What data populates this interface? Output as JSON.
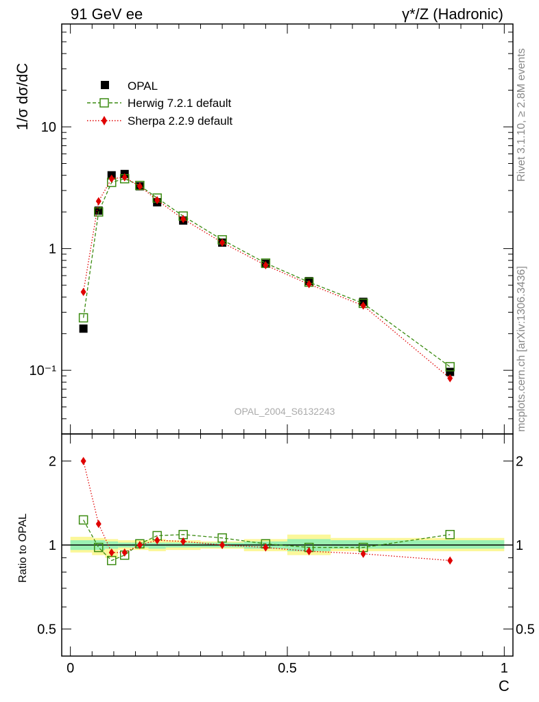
{
  "header": {
    "left": "91 GeV ee",
    "right": "γ*/Z (Hadronic)"
  },
  "side": {
    "rivet": "Rivet 3.1.10, ≥ 2.8M events",
    "source": "mcplots.cern.ch [arXiv:1306.3436]"
  },
  "watermark": "OPAL_2004_S6132243",
  "chart_data": [
    {
      "type": "line",
      "panel": "main",
      "ylabel": "1/σ dσ/dC",
      "yscale": "log",
      "ylim": [
        0.03,
        70
      ],
      "xlim": [
        -0.02,
        1.02
      ],
      "ytick_labels": [
        {
          "v": 0.1,
          "label": "10⁻¹"
        },
        {
          "v": 1,
          "label": "1"
        },
        {
          "v": 10,
          "label": "10"
        }
      ],
      "legend_position": "top-left",
      "x": [
        0.03,
        0.065,
        0.095,
        0.125,
        0.16,
        0.2,
        0.26,
        0.35,
        0.45,
        0.55,
        0.675,
        0.875
      ],
      "series": [
        {
          "name": "OPAL",
          "style": "data",
          "color": "#000000",
          "values": [
            0.22,
            2.05,
            4.0,
            4.1,
            3.25,
            2.4,
            1.7,
            1.12,
            0.75,
            0.54,
            0.365,
            0.097
          ]
        },
        {
          "name": "Herwig 7.2.1 default",
          "style": "dashed-square",
          "color": "#3a8a10",
          "values": [
            0.27,
            2.0,
            3.5,
            3.75,
            3.3,
            2.6,
            1.85,
            1.18,
            0.76,
            0.53,
            0.355,
            0.107
          ]
        },
        {
          "name": "Sherpa 2.2.9 default",
          "style": "dotted-diamond",
          "color": "#e00000",
          "values": [
            0.44,
            2.45,
            3.75,
            3.85,
            3.25,
            2.5,
            1.75,
            1.12,
            0.73,
            0.51,
            0.34,
            0.086
          ]
        }
      ]
    },
    {
      "type": "line",
      "panel": "ratio",
      "ylabel": "Ratio to OPAL",
      "xlabel": "C",
      "yscale": "log",
      "ylim": [
        0.4,
        2.5
      ],
      "xlim": [
        -0.02,
        1.02
      ],
      "xtick_labels": [
        {
          "v": 0,
          "label": "0"
        },
        {
          "v": 0.5,
          "label": "0.5"
        },
        {
          "v": 1,
          "label": "1"
        }
      ],
      "ytick_labels": [
        {
          "v": 0.5,
          "label": "0.5"
        },
        {
          "v": 1,
          "label": "1"
        },
        {
          "v": 2,
          "label": "2"
        }
      ],
      "x": [
        0.03,
        0.065,
        0.095,
        0.125,
        0.16,
        0.2,
        0.26,
        0.35,
        0.45,
        0.55,
        0.675,
        0.875
      ],
      "bands": [
        {
          "x0": 0.0,
          "x1": 0.05,
          "yellow": [
            0.94,
            1.07
          ],
          "green": [
            0.96,
            1.04
          ]
        },
        {
          "x0": 0.05,
          "x1": 0.08,
          "yellow": [
            0.92,
            1.06
          ],
          "green": [
            0.96,
            1.04
          ]
        },
        {
          "x0": 0.08,
          "x1": 0.11,
          "yellow": [
            0.9,
            1.05
          ],
          "green": [
            0.97,
            1.03
          ]
        },
        {
          "x0": 0.11,
          "x1": 0.14,
          "yellow": [
            0.96,
            1.04
          ],
          "green": [
            0.98,
            1.02
          ]
        },
        {
          "x0": 0.14,
          "x1": 0.18,
          "yellow": [
            0.96,
            1.04
          ],
          "green": [
            0.98,
            1.02
          ]
        },
        {
          "x0": 0.18,
          "x1": 0.22,
          "yellow": [
            0.95,
            1.05
          ],
          "green": [
            0.97,
            1.02
          ]
        },
        {
          "x0": 0.22,
          "x1": 0.3,
          "yellow": [
            0.96,
            1.04
          ],
          "green": [
            0.98,
            1.02
          ]
        },
        {
          "x0": 0.3,
          "x1": 0.4,
          "yellow": [
            0.97,
            1.03
          ],
          "green": [
            0.98,
            1.02
          ]
        },
        {
          "x0": 0.4,
          "x1": 0.5,
          "yellow": [
            0.95,
            1.05
          ],
          "green": [
            0.97,
            1.03
          ]
        },
        {
          "x0": 0.5,
          "x1": 0.6,
          "yellow": [
            0.92,
            1.09
          ],
          "green": [
            0.95,
            1.05
          ]
        },
        {
          "x0": 0.6,
          "x1": 0.75,
          "yellow": [
            0.95,
            1.06
          ],
          "green": [
            0.97,
            1.04
          ]
        },
        {
          "x0": 0.75,
          "x1": 1.0,
          "yellow": [
            0.95,
            1.06
          ],
          "green": [
            0.97,
            1.04
          ]
        }
      ],
      "series": [
        {
          "name": "Herwig 7.2.1 default",
          "style": "dashed-square",
          "color": "#3a8a10",
          "values": [
            1.23,
            0.98,
            0.88,
            0.92,
            1.01,
            1.08,
            1.09,
            1.06,
            1.01,
            0.98,
            0.98,
            1.09
          ]
        },
        {
          "name": "Sherpa 2.2.9 default",
          "style": "dotted-diamond",
          "color": "#e00000",
          "values": [
            2.0,
            1.19,
            0.94,
            0.94,
            1.0,
            1.04,
            1.03,
            1.0,
            0.98,
            0.95,
            0.93,
            0.88
          ]
        }
      ]
    }
  ]
}
